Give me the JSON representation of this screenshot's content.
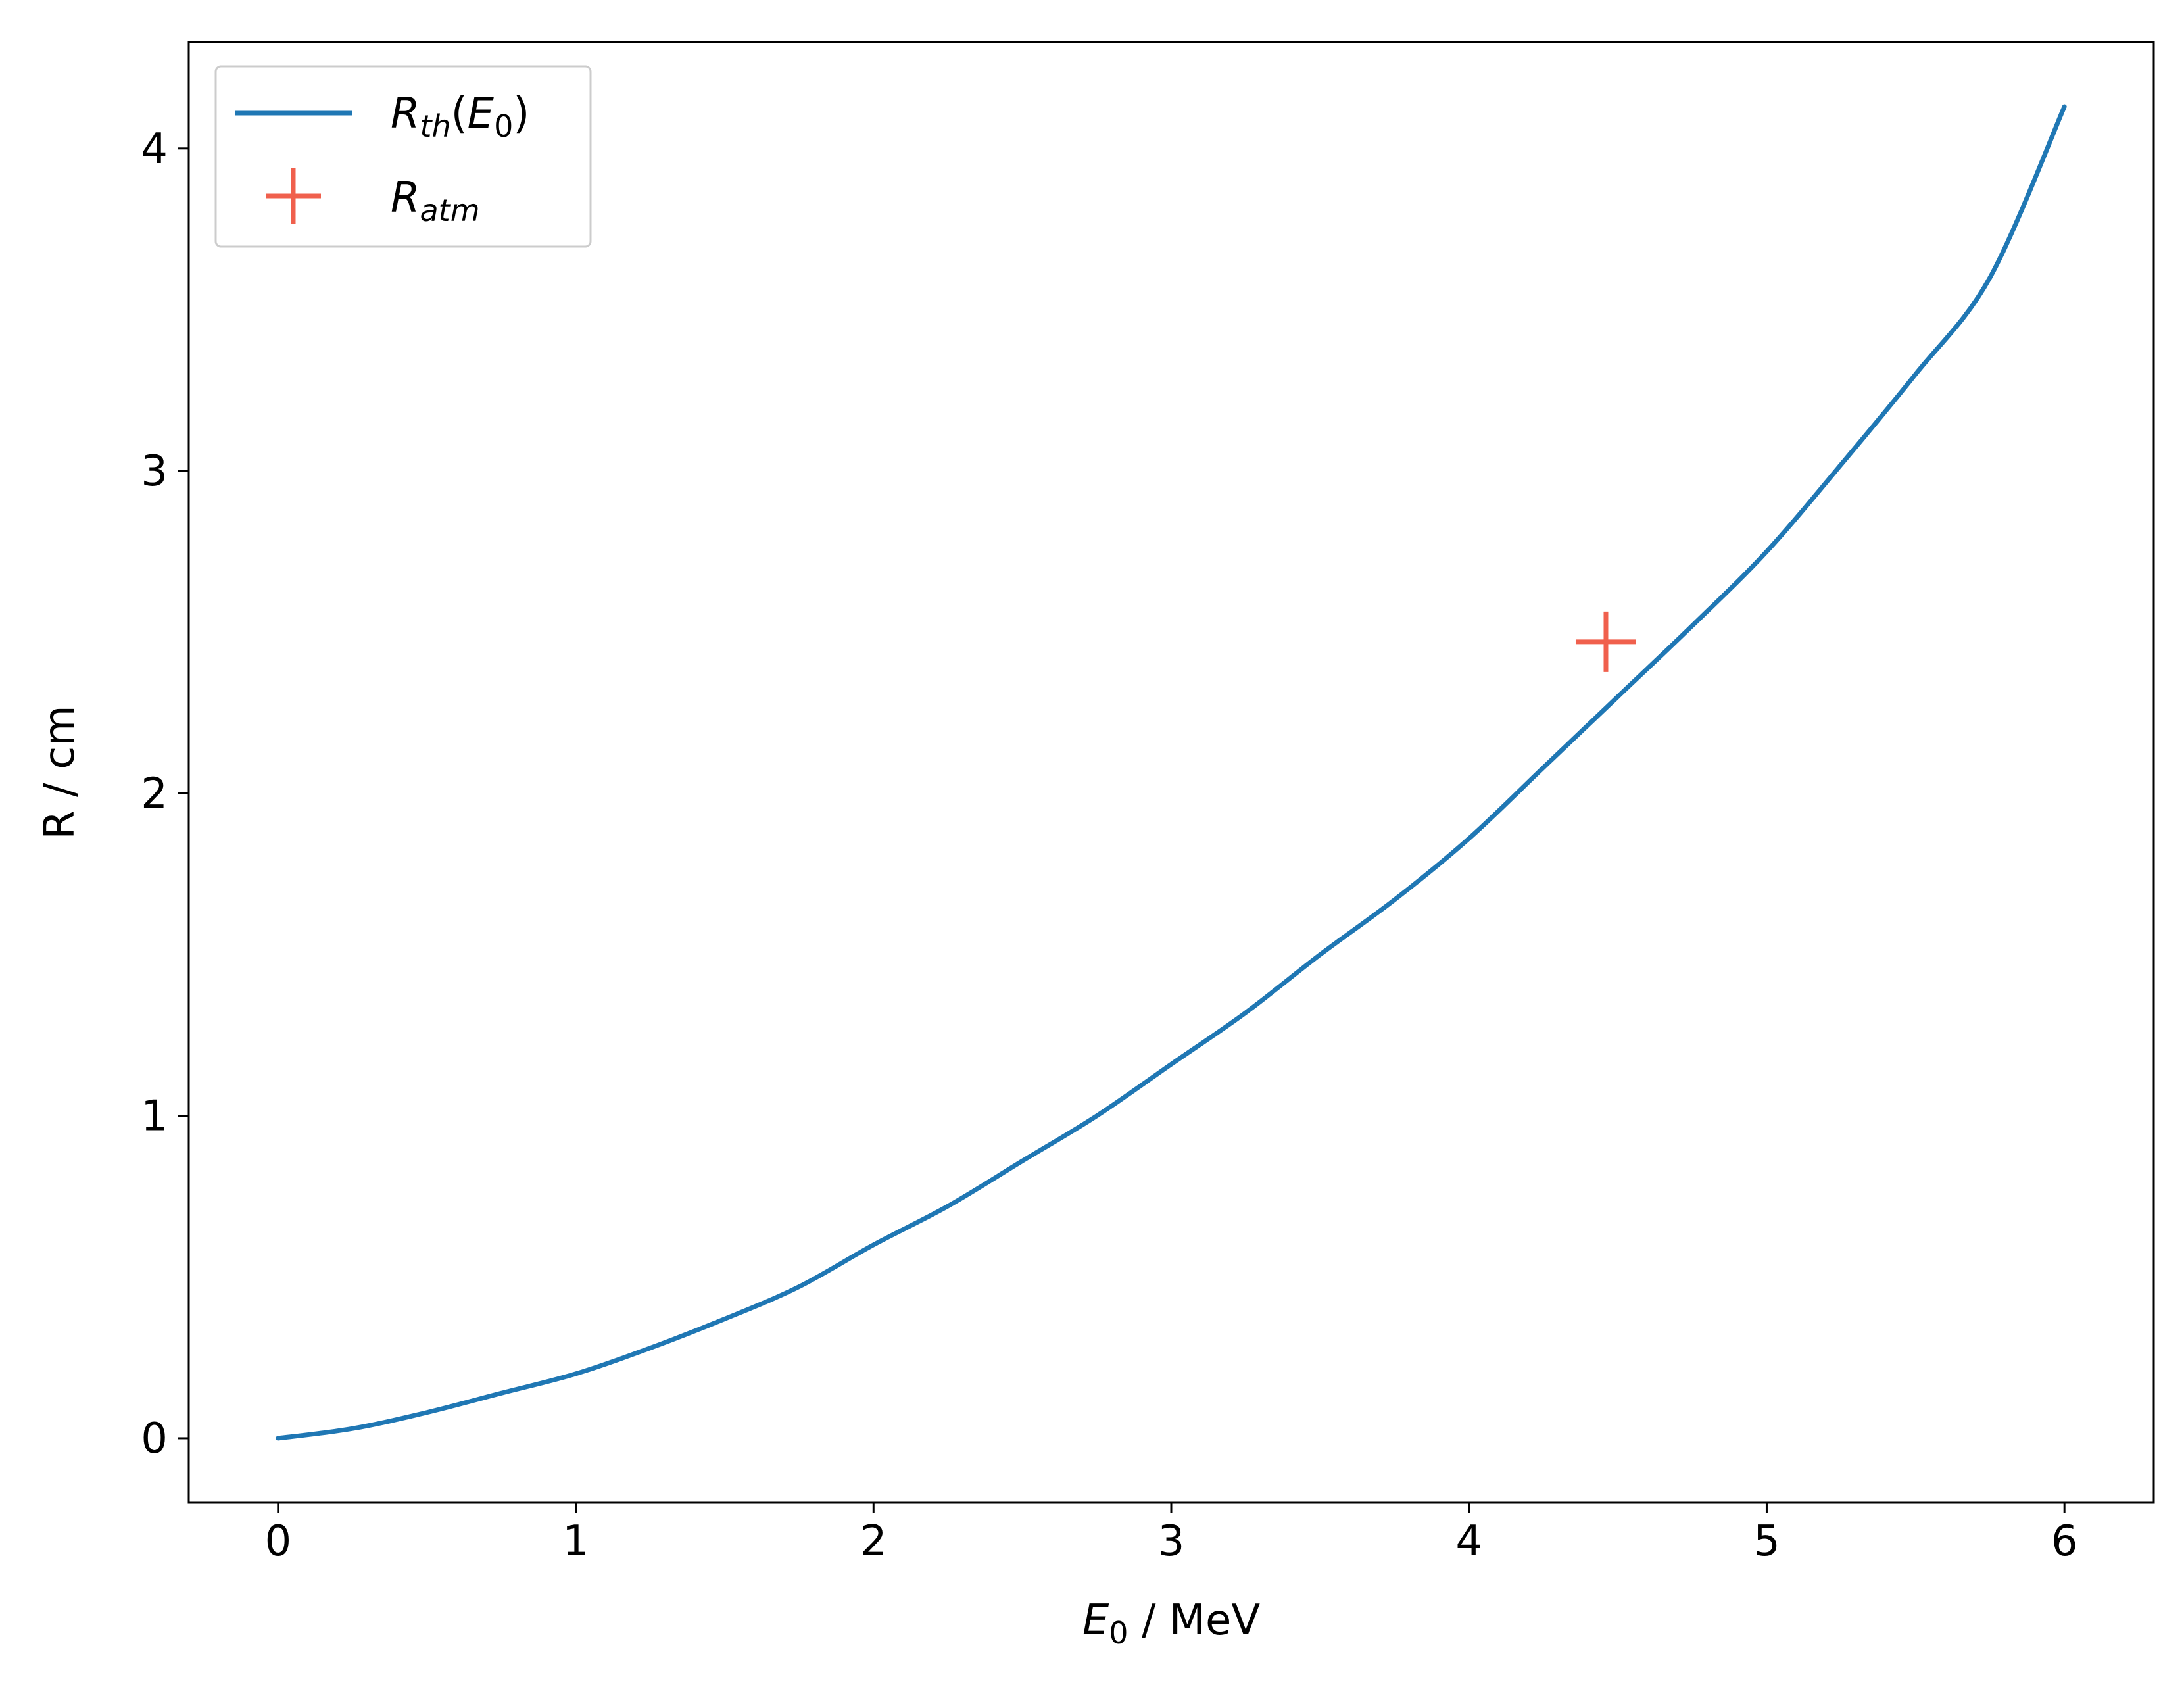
{
  "chart_data": {
    "type": "line",
    "xlabel": "E0 / MeV",
    "ylabel": "R / cm",
    "xlim": [
      -0.3,
      6.3
    ],
    "ylim": [
      -0.2,
      4.33
    ],
    "x_ticks": [
      "0",
      "1",
      "2",
      "3",
      "4",
      "5",
      "6"
    ],
    "y_ticks": [
      "0",
      "1",
      "2",
      "3",
      "4"
    ],
    "grid": false,
    "legend_position": "top-left",
    "series": [
      {
        "name": "Rth(E0)",
        "kind": "line",
        "color": "#1f77b4",
        "x": [
          0,
          0.25,
          0.5,
          0.75,
          1.0,
          1.25,
          1.5,
          1.75,
          2.0,
          2.25,
          2.5,
          2.75,
          3.0,
          3.25,
          3.5,
          3.75,
          4.0,
          4.25,
          4.5,
          4.75,
          5.0,
          5.25,
          5.5,
          5.75,
          6.0
        ],
        "y": [
          0,
          0.03,
          0.08,
          0.14,
          0.2,
          0.28,
          0.37,
          0.47,
          0.6,
          0.72,
          0.86,
          1.0,
          1.16,
          1.32,
          1.5,
          1.67,
          1.86,
          2.08,
          2.3,
          2.52,
          2.75,
          3.02,
          3.3,
          3.6,
          4.13
        ]
      },
      {
        "name": "Ratm",
        "kind": "marker",
        "marker": "+",
        "color": "#f0604d",
        "x": [
          4.46
        ],
        "y": [
          2.47
        ]
      }
    ]
  }
}
